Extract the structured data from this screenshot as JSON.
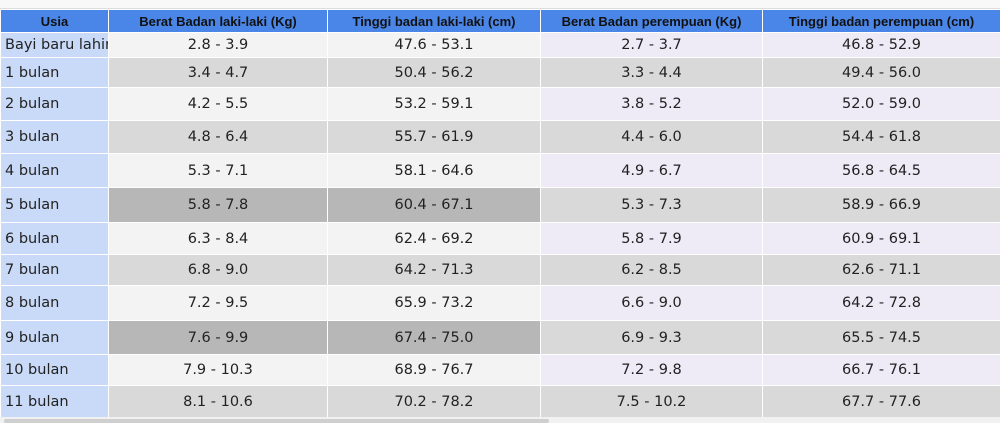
{
  "table": {
    "headers": [
      "Usia",
      "Berat Badan laki-laki (Kg)",
      "Tinggi badan laki-laki (cm)",
      "Berat Badan perempuan (Kg)",
      "Tinggi badan perempuan (cm)"
    ],
    "rows": [
      [
        "Bayi baru lahir",
        "2.8 - 3.9",
        "47.6 - 53.1",
        "2.7 - 3.7",
        "46.8 - 52.9"
      ],
      [
        "1 bulan",
        "3.4 - 4.7",
        "50.4 - 56.2",
        "3.3 - 4.4",
        "49.4 - 56.0"
      ],
      [
        "2 bulan",
        "4.2 - 5.5",
        "53.2 - 59.1",
        "3.8 - 5.2",
        "52.0 - 59.0"
      ],
      [
        "3 bulan",
        "4.8 - 6.4",
        "55.7 - 61.9",
        "4.4 - 6.0",
        "54.4 - 61.8"
      ],
      [
        "4 bulan",
        "5.3 - 7.1",
        "58.1 - 64.6",
        "4.9 - 6.7",
        "56.8 - 64.5"
      ],
      [
        "5 bulan",
        "5.8 - 7.8",
        "60.4 - 67.1",
        "5.3 - 7.3",
        "58.9 - 66.9"
      ],
      [
        "6 bulan",
        "6.3 - 8.4",
        "62.4 - 69.2",
        "5.8 - 7.9",
        "60.9 - 69.1"
      ],
      [
        "7 bulan",
        "6.8 - 9.0",
        "64.2 - 71.3",
        "6.2 - 8.5",
        "62.6 - 71.1"
      ],
      [
        "8 bulan",
        "7.2 - 9.5",
        "65.9 - 73.2",
        "6.6 - 9.0",
        "64.2 - 72.8"
      ],
      [
        "9 bulan",
        "7.6 - 9.9",
        "67.4 - 75.0",
        "6.9 - 9.3",
        "65.5 - 74.5"
      ],
      [
        "10 bulan",
        "7.9 - 10.3",
        "68.9 - 76.7",
        "7.2 - 9.8",
        "66.7 - 76.1"
      ],
      [
        "11 bulan",
        "8.1 - 10.6",
        "70.2 - 78.2",
        "7.5 - 10.2",
        "67.7 - 77.6"
      ]
    ]
  }
}
